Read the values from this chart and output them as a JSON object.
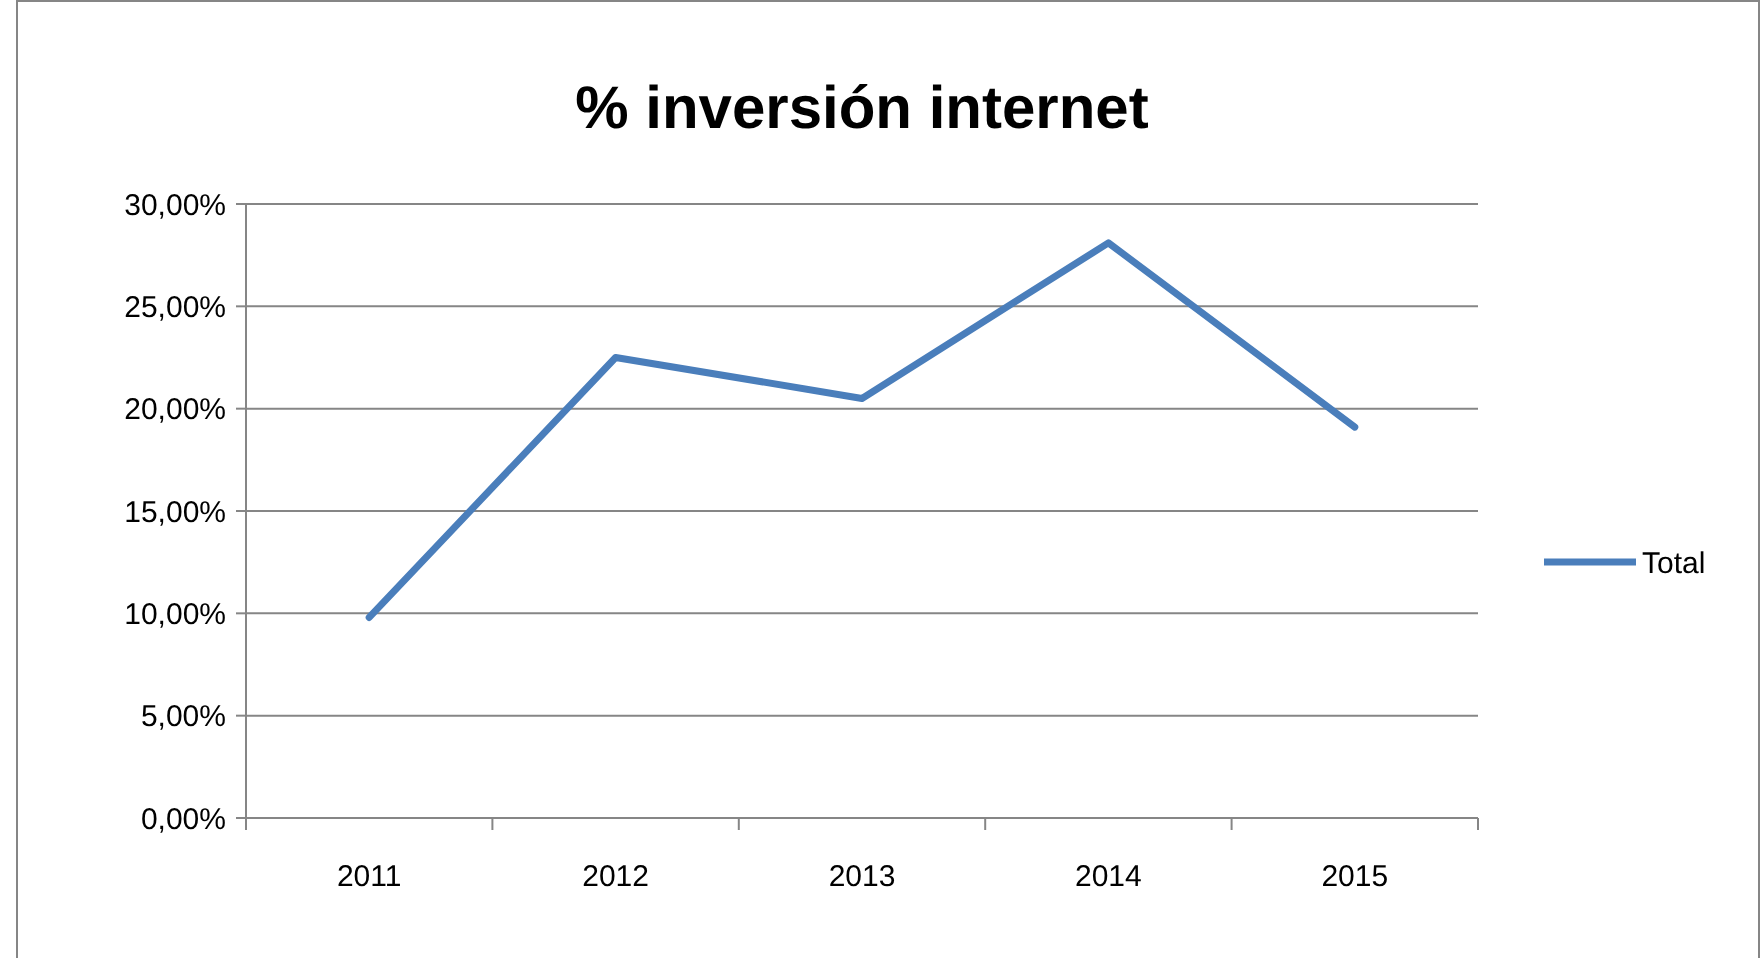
{
  "chart_data": {
    "type": "line",
    "title": "% inversión internet",
    "categories": [
      "2011",
      "2012",
      "2013",
      "2014",
      "2015"
    ],
    "series": [
      {
        "name": "Total",
        "color": "#4a7ebb",
        "values": [
          9.8,
          22.5,
          20.5,
          28.1,
          19.1
        ]
      }
    ],
    "ylim": [
      0,
      30
    ],
    "yticks": [
      {
        "value": 0,
        "label": "0,00%"
      },
      {
        "value": 5,
        "label": "5,00%"
      },
      {
        "value": 10,
        "label": "10,00%"
      },
      {
        "value": 15,
        "label": "15,00%"
      },
      {
        "value": 20,
        "label": "20,00%"
      },
      {
        "value": 25,
        "label": "25,00%"
      },
      {
        "value": 30,
        "label": "30,00%"
      }
    ],
    "grid": "y",
    "legend": "right",
    "marker": "none",
    "line_style": "solid"
  }
}
